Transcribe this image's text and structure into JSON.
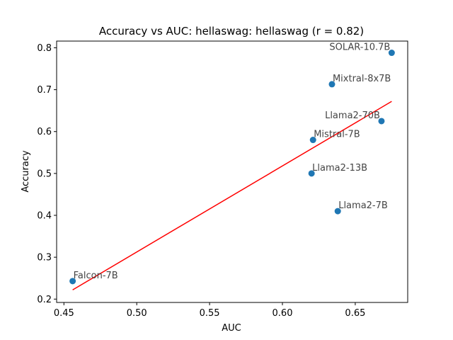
{
  "chart_data": {
    "type": "scatter",
    "title": "Accuracy vs AUC: hellaswag: hellaswag (r = 0.82)",
    "xlabel": "AUC",
    "ylabel": "Accuracy",
    "xlim": [
      0.445,
      0.686
    ],
    "ylim": [
      0.192,
      0.816
    ],
    "xticks": [
      0.45,
      0.5,
      0.55,
      0.6,
      0.65
    ],
    "xtick_labels": [
      "0.45",
      "0.50",
      "0.55",
      "0.60",
      "0.65"
    ],
    "yticks": [
      0.2,
      0.3,
      0.4,
      0.5,
      0.6,
      0.7,
      0.8
    ],
    "ytick_labels": [
      "0.2",
      "0.3",
      "0.4",
      "0.5",
      "0.6",
      "0.7",
      "0.8"
    ],
    "grid": false,
    "points": [
      {
        "label": "Falcon-7B",
        "x": 0.456,
        "y": 0.243
      },
      {
        "label": "Llama2-13B",
        "x": 0.62,
        "y": 0.5
      },
      {
        "label": "Mistral-7B",
        "x": 0.621,
        "y": 0.58
      },
      {
        "label": "Mixtral-8x7B",
        "x": 0.634,
        "y": 0.713
      },
      {
        "label": "Llama2-7B",
        "x": 0.638,
        "y": 0.41
      },
      {
        "label": "Llama2-70B",
        "x": 0.668,
        "y": 0.625
      },
      {
        "label": "SOLAR-10.7B",
        "x": 0.675,
        "y": 0.788
      }
    ],
    "fit_line": {
      "x": [
        0.456,
        0.675
      ],
      "y": [
        0.222,
        0.672
      ]
    },
    "colors": {
      "points": "#1f77b4",
      "fit_line": "#ff0000"
    }
  }
}
